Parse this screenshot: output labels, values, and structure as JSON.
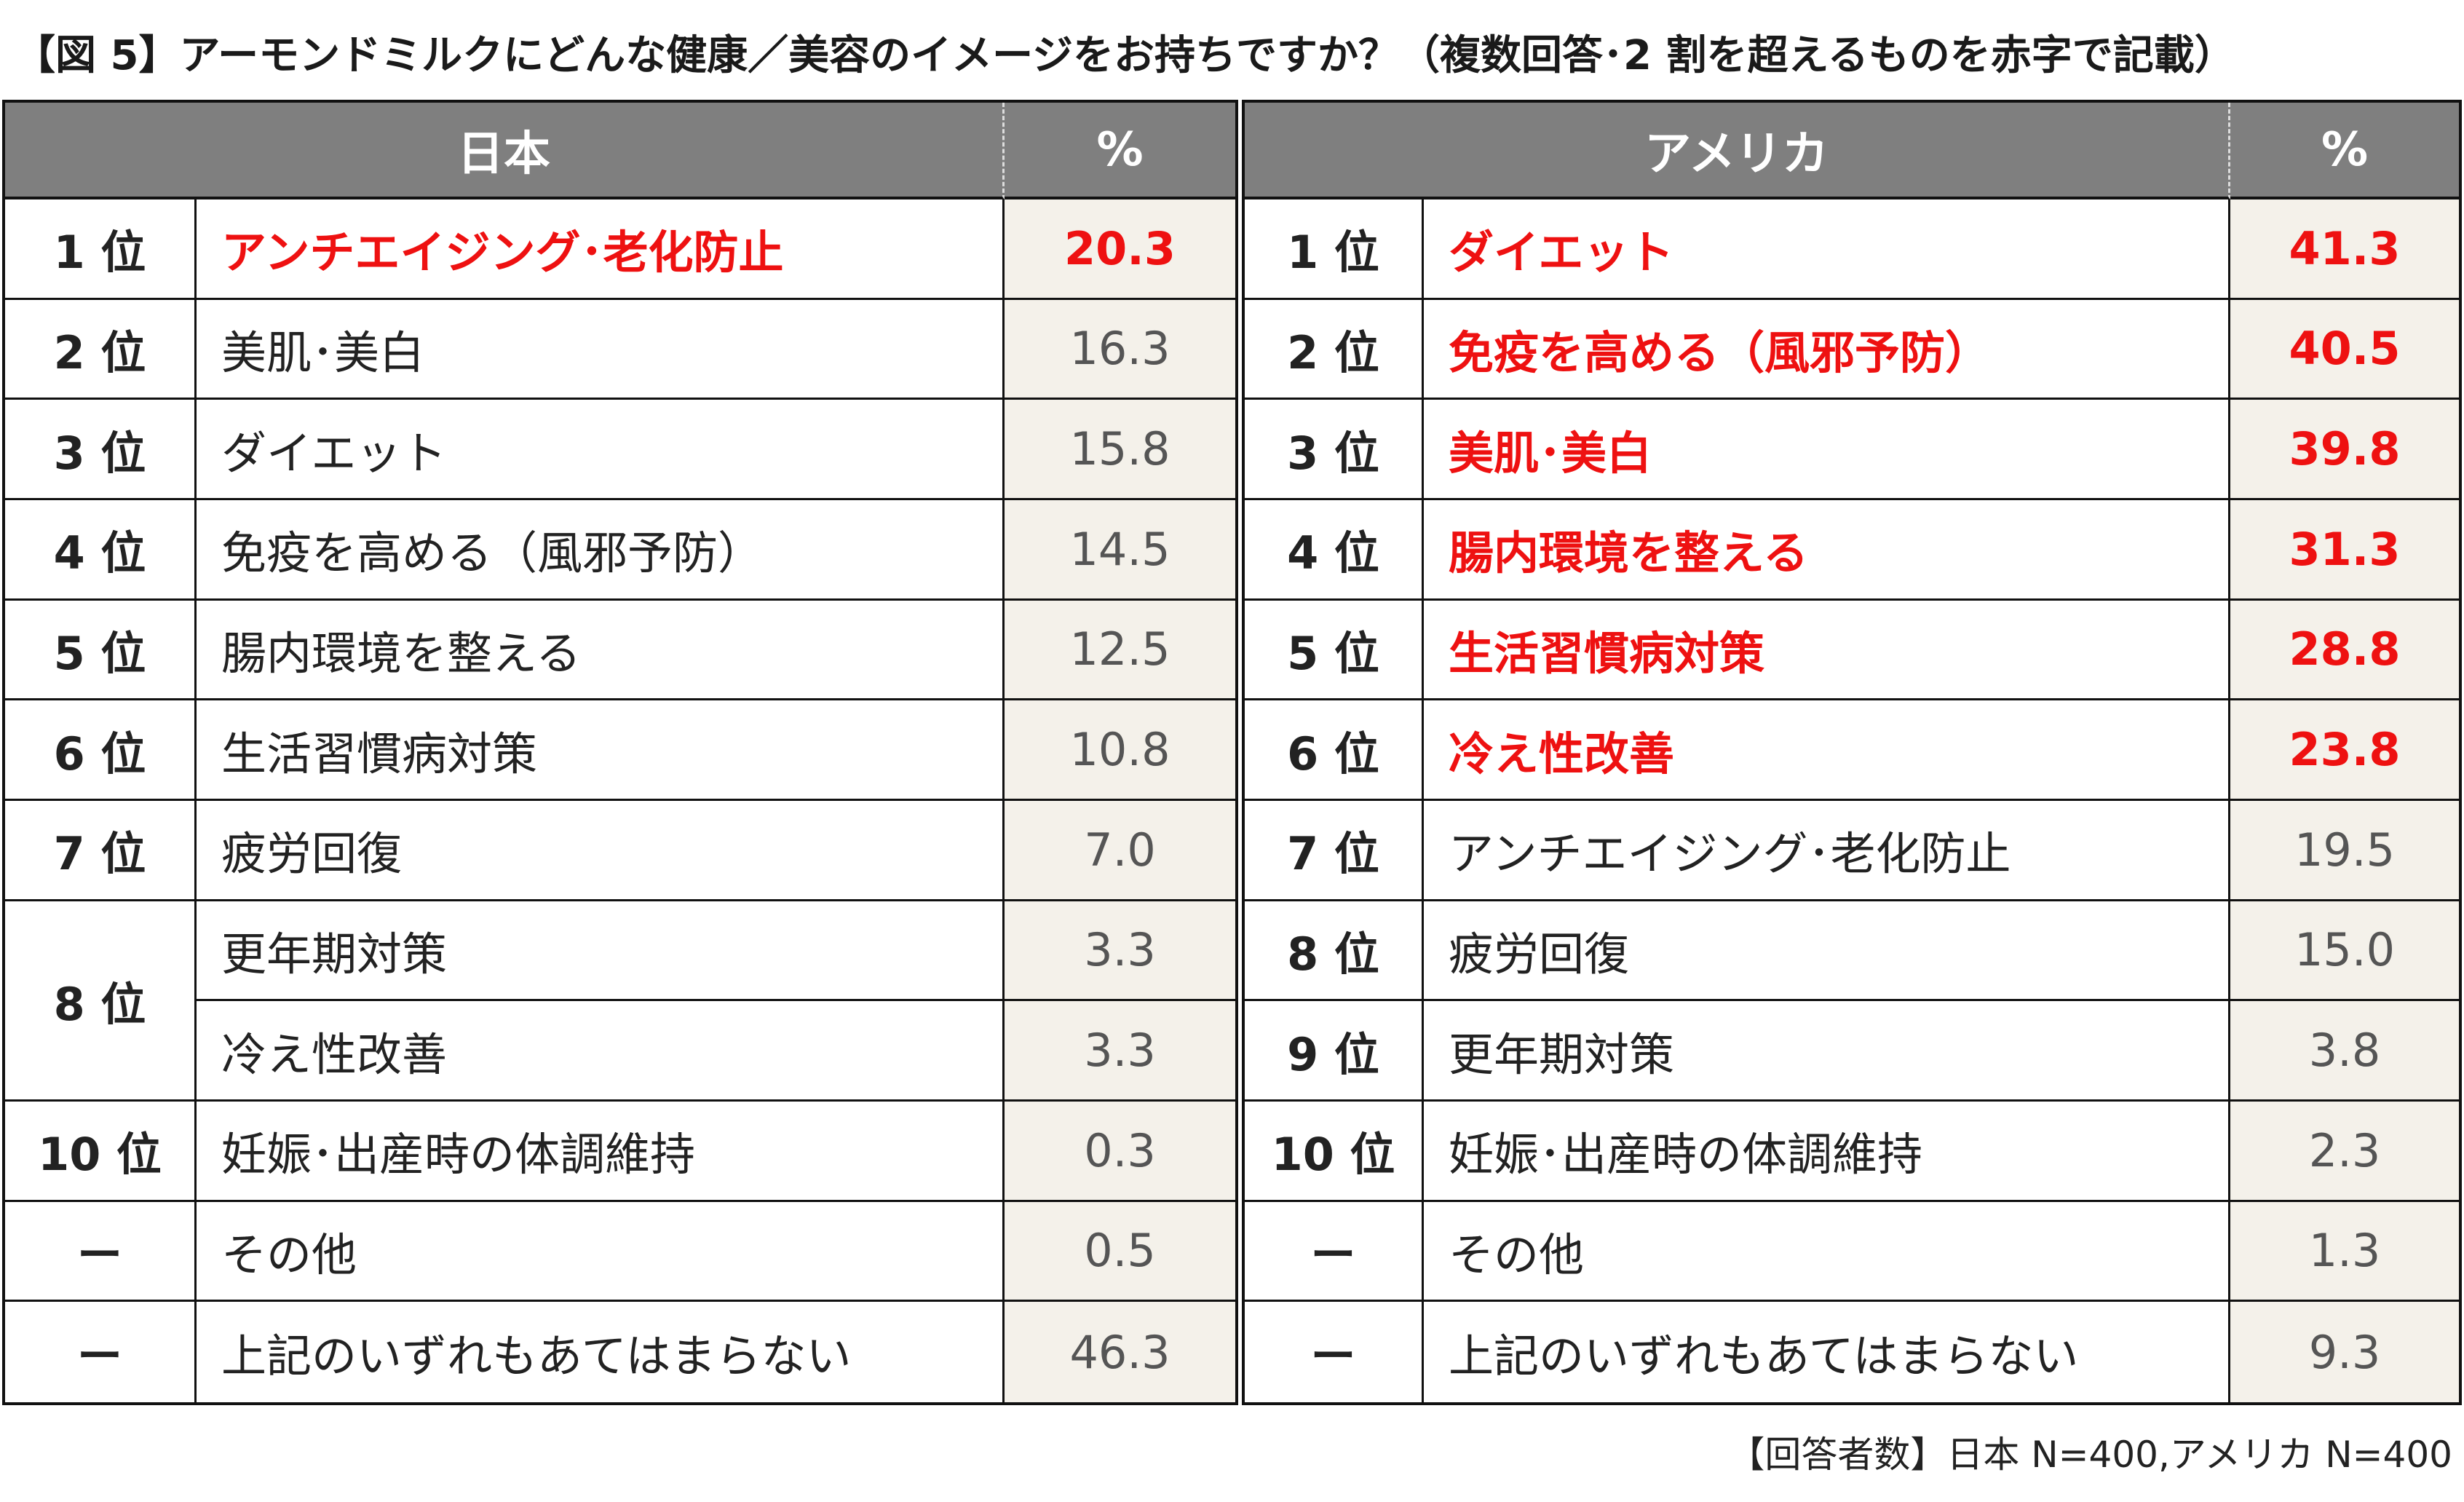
{
  "title": "【図 5】アーモンドミルクにどんな健康／美容のイメージをお持ちですか？（複数回答･2 割を超えるものを赤字で記載）",
  "footnote": "【回答者数】日本 N=400,アメリカ N=400",
  "colors": {
    "header_bg": "#7f7f7f",
    "value_bg": "#f4f1ea",
    "highlight": "#ee1111"
  },
  "chart_data": [
    {
      "type": "table",
      "region": "日本",
      "columns": [
        "日本",
        "%"
      ],
      "rows": [
        {
          "rank": "1 位",
          "item": "アンチエイジング･老化防止",
          "value": "20.3",
          "highlight": true
        },
        {
          "rank": "2 位",
          "item": "美肌･美白",
          "value": "16.3",
          "highlight": false
        },
        {
          "rank": "3 位",
          "item": "ダイエット",
          "value": "15.8",
          "highlight": false
        },
        {
          "rank": "4 位",
          "item": "免疫を高める（風邪予防）",
          "value": "14.5",
          "highlight": false
        },
        {
          "rank": "5 位",
          "item": "腸内環境を整える",
          "value": "12.5",
          "highlight": false
        },
        {
          "rank": "6 位",
          "item": "生活習慣病対策",
          "value": "10.8",
          "highlight": false
        },
        {
          "rank": "7 位",
          "item": "疲労回復",
          "value": "7.0",
          "highlight": false
        },
        {
          "rank": "8 位",
          "item": "更年期対策",
          "value": "3.3",
          "highlight": false,
          "rank_span": 2
        },
        {
          "rank": "",
          "item": "冷え性改善",
          "value": "3.3",
          "highlight": false,
          "rank_merged": true
        },
        {
          "rank": "10 位",
          "item": "妊娠･出産時の体調維持",
          "value": "0.3",
          "highlight": false
        },
        {
          "rank": "ー",
          "item": "その他",
          "value": "0.5",
          "highlight": false
        },
        {
          "rank": "ー",
          "item": "上記のいずれもあてはまらない",
          "value": "46.3",
          "highlight": false
        }
      ]
    },
    {
      "type": "table",
      "region": "アメリカ",
      "columns": [
        "アメリカ",
        "%"
      ],
      "rows": [
        {
          "rank": "1 位",
          "item": "ダイエット",
          "value": "41.3",
          "highlight": true
        },
        {
          "rank": "2 位",
          "item": "免疫を高める（風邪予防）",
          "value": "40.5",
          "highlight": true
        },
        {
          "rank": "3 位",
          "item": "美肌･美白",
          "value": "39.8",
          "highlight": true
        },
        {
          "rank": "4 位",
          "item": "腸内環境を整える",
          "value": "31.3",
          "highlight": true
        },
        {
          "rank": "5 位",
          "item": "生活習慣病対策",
          "value": "28.8",
          "highlight": true
        },
        {
          "rank": "6 位",
          "item": "冷え性改善",
          "value": "23.8",
          "highlight": true
        },
        {
          "rank": "7 位",
          "item": "アンチエイジング･老化防止",
          "value": "19.5",
          "highlight": false
        },
        {
          "rank": "8 位",
          "item": "疲労回復",
          "value": "15.0",
          "highlight": false
        },
        {
          "rank": "9 位",
          "item": "更年期対策",
          "value": "3.8",
          "highlight": false
        },
        {
          "rank": "10 位",
          "item": "妊娠･出産時の体調維持",
          "value": "2.3",
          "highlight": false
        },
        {
          "rank": "ー",
          "item": "その他",
          "value": "1.3",
          "highlight": false
        },
        {
          "rank": "ー",
          "item": "上記のいずれもあてはまらない",
          "value": "9.3",
          "highlight": false
        }
      ]
    }
  ]
}
